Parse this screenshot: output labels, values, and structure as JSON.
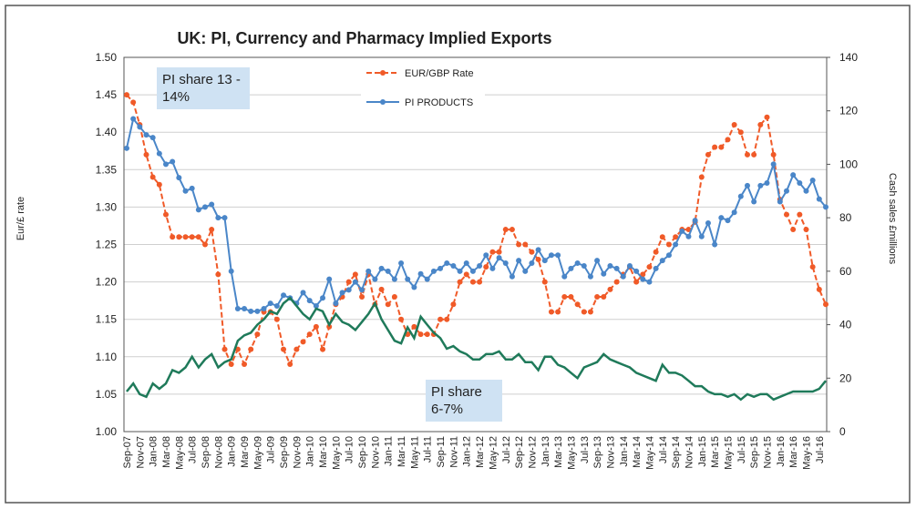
{
  "chart_data": {
    "type": "line",
    "title": "UK: PI, Currency and Pharmacy Implied Exports",
    "y_label": "Eur/£ rate",
    "y2_label": "Cash sales £millions",
    "annotations": [
      "PI share 13 - 14%",
      "PI share 6-7%"
    ],
    "categories": [
      "Sep-07",
      null,
      "Nov-07",
      null,
      "Jan-08",
      null,
      "Mar-08",
      null,
      "May-08",
      null,
      "Jul-08",
      null,
      "Sep-08",
      null,
      "Nov-08",
      null,
      "Jan-09",
      null,
      "Mar-09",
      null,
      "May-09",
      null,
      "Jul-09",
      null,
      "Sep-09",
      null,
      "Nov-09",
      null,
      "Jan-10",
      null,
      "Mar-10",
      null,
      "May-10",
      null,
      "Jul-10",
      null,
      "Sep-10",
      null,
      "Nov-10",
      null,
      "Jan-11",
      null,
      "Mar-11",
      null,
      "May-11",
      null,
      "Jul-11",
      null,
      "Sep-11",
      null,
      "Nov-11",
      null,
      "Jan-12",
      null,
      "Mar-12",
      null,
      "May-12",
      null,
      "Jul-12",
      null,
      "Sep-12",
      null,
      "Nov-12",
      null,
      "Jan-13",
      null,
      "Mar-13",
      null,
      "May-13",
      null,
      "Jul-13",
      null,
      "Sep-13",
      null,
      "Nov-13",
      null,
      "Jan-14",
      null,
      "Mar-14",
      null,
      "May-14",
      null,
      "Jul-14",
      null,
      "Sep-14",
      null,
      "Nov-14",
      null,
      "Jan-15",
      null,
      "Mar-15",
      null,
      "May-15",
      null,
      "Jul-15",
      null,
      "Sep-15",
      null,
      "Nov-15",
      null,
      "Jan-16",
      null,
      "Mar-16",
      null,
      "May-16",
      null,
      "Jul-16",
      null
    ],
    "series": [
      {
        "name": "EUR/GBP Rate",
        "color": "#f05a28",
        "dashed": true,
        "markers": true,
        "axis": "y",
        "values": [
          1.45,
          1.44,
          1.41,
          1.37,
          1.34,
          1.33,
          1.29,
          1.26,
          1.26,
          1.26,
          1.26,
          1.26,
          1.25,
          1.27,
          1.21,
          1.11,
          1.09,
          1.11,
          1.09,
          1.11,
          1.13,
          1.16,
          1.16,
          1.15,
          1.11,
          1.09,
          1.11,
          1.12,
          1.13,
          1.14,
          1.11,
          1.14,
          1.17,
          1.18,
          1.2,
          1.21,
          1.18,
          1.21,
          1.17,
          1.19,
          1.17,
          1.18,
          1.15,
          1.13,
          1.14,
          1.13,
          1.13,
          1.13,
          1.15,
          1.15,
          1.17,
          1.2,
          1.21,
          1.2,
          1.2,
          1.22,
          1.24,
          1.24,
          1.27,
          1.27,
          1.25,
          1.25,
          1.24,
          1.23,
          1.2,
          1.16,
          1.16,
          1.18,
          1.18,
          1.17,
          1.16,
          1.16,
          1.18,
          1.18,
          1.19,
          1.2,
          1.21,
          1.22,
          1.2,
          1.21,
          1.22,
          1.24,
          1.26,
          1.25,
          1.26,
          1.27,
          1.27,
          1.28,
          1.34,
          1.37,
          1.38,
          1.38,
          1.39,
          1.41,
          1.4,
          1.37,
          1.37,
          1.41,
          1.42,
          1.37,
          1.31,
          1.29,
          1.27,
          1.29,
          1.27,
          1.22,
          1.19,
          1.17
        ]
      },
      {
        "name": "PI PRODUCTS",
        "color": "#4a86c8",
        "dashed": false,
        "markers": true,
        "axis": "y2",
        "values": [
          106,
          117,
          114,
          111,
          110,
          104,
          100,
          101,
          95,
          90,
          91,
          83,
          84,
          85,
          80,
          80,
          60,
          46,
          46,
          45,
          45,
          46,
          48,
          47,
          51,
          50,
          48,
          52,
          49,
          47,
          50,
          57,
          48,
          52,
          53,
          56,
          53,
          60,
          57,
          61,
          60,
          57,
          63,
          57,
          54,
          59,
          57,
          60,
          61,
          63,
          62,
          60,
          63,
          60,
          62,
          66,
          61,
          65,
          63,
          58,
          64,
          60,
          63,
          68,
          64,
          66,
          66,
          58,
          61,
          63,
          62,
          58,
          64,
          59,
          62,
          61,
          58,
          62,
          60,
          57,
          56,
          61,
          64,
          66,
          70,
          75,
          73,
          79,
          73,
          78,
          70,
          80,
          79,
          82,
          88,
          92,
          86,
          92,
          93,
          100,
          86,
          90,
          96,
          93,
          90,
          94,
          87,
          84
        ]
      },
      {
        "color": "#1f7a5a",
        "dashed": false,
        "markers": false,
        "axis": "y2",
        "values": [
          15,
          18,
          14,
          13,
          18,
          16,
          18,
          23,
          22,
          24,
          28,
          24,
          27,
          29,
          24,
          26,
          27,
          34,
          36,
          37,
          40,
          42,
          45,
          44,
          48,
          50,
          47,
          44,
          42,
          46,
          45,
          40,
          44,
          41,
          40,
          38,
          41,
          44,
          48,
          42,
          38,
          34,
          33,
          39,
          35,
          43,
          40,
          37,
          35,
          31,
          32,
          30,
          29,
          27,
          27,
          29,
          29,
          30,
          27,
          27,
          29,
          26,
          26,
          23,
          28,
          28,
          25,
          24,
          22,
          20,
          24,
          25,
          26,
          29,
          27,
          26,
          25,
          24,
          22,
          21,
          20,
          19,
          25,
          22,
          22,
          21,
          19,
          17,
          17,
          15,
          14,
          14,
          13,
          14,
          12,
          14,
          13,
          14,
          14,
          12,
          13,
          14,
          15,
          15,
          15,
          15,
          16,
          19
        ]
      }
    ],
    "ylim": [
      1.0,
      1.5
    ],
    "yticks": [
      {
        "value": 1.0,
        "label": "1.00"
      },
      1.05,
      {
        "value": 1.1,
        "label": "1.10"
      },
      1.15,
      {
        "value": 1.2,
        "label": "1.20"
      },
      1.25,
      {
        "value": 1.3,
        "label": "1.30"
      },
      1.35,
      {
        "value": 1.4,
        "label": "1.40"
      },
      1.45,
      {
        "value": 1.5,
        "label": "1.50"
      }
    ],
    "y2lim": [
      0,
      140
    ],
    "y2ticks": [
      0,
      20,
      40,
      60,
      80,
      100,
      120,
      140
    ],
    "grid": true
  }
}
